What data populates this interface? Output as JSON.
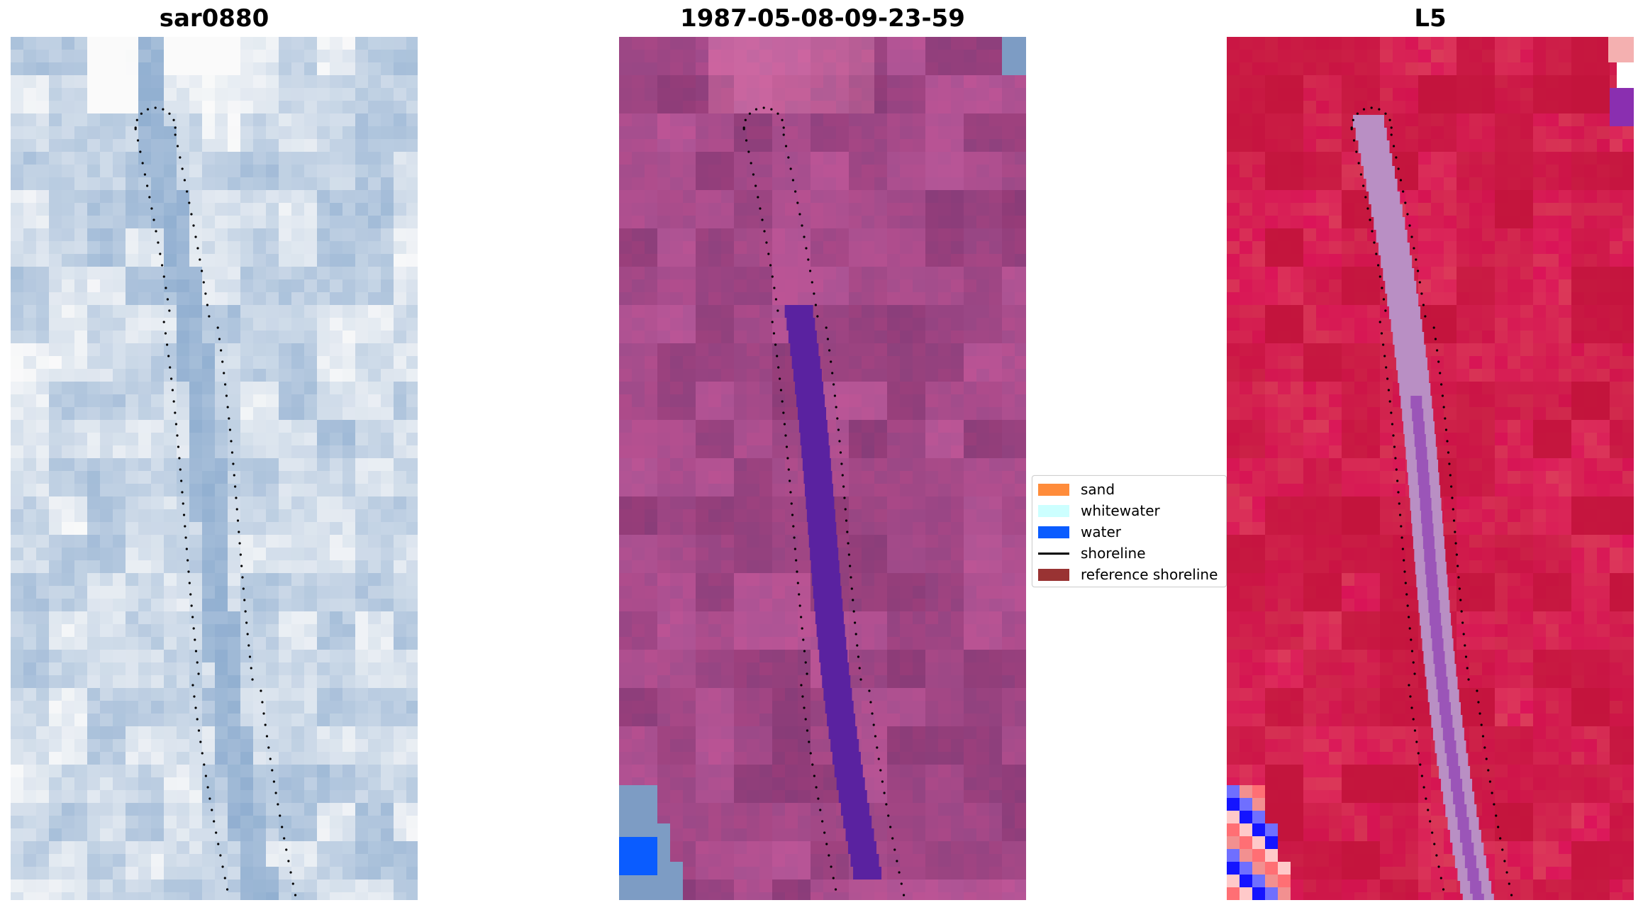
{
  "panels": [
    {
      "title": "sar0880",
      "variant": "rgb"
    },
    {
      "title": "1987-05-08-09-23-59",
      "variant": "classified"
    },
    {
      "title": "L5",
      "variant": "index"
    }
  ],
  "legend": {
    "items": [
      {
        "label": "sand",
        "kind": "patch",
        "color": "#ff8c3b"
      },
      {
        "label": "whitewater",
        "kind": "patch",
        "color": "#ccffff"
      },
      {
        "label": "water",
        "kind": "patch",
        "color": "#0a5cff"
      },
      {
        "label": "shoreline",
        "kind": "line",
        "color": "#000000"
      },
      {
        "label": "reference shoreline",
        "kind": "patch",
        "color": "#993333"
      }
    ]
  },
  "colors": {
    "rgb_base": "#7fa3c8",
    "classified_base": "#8e457f",
    "classified_water_channel": "#5a22a0",
    "index_base": "#c41e4a",
    "index_channel": "#b98fc4",
    "shoreline": "#000000"
  }
}
